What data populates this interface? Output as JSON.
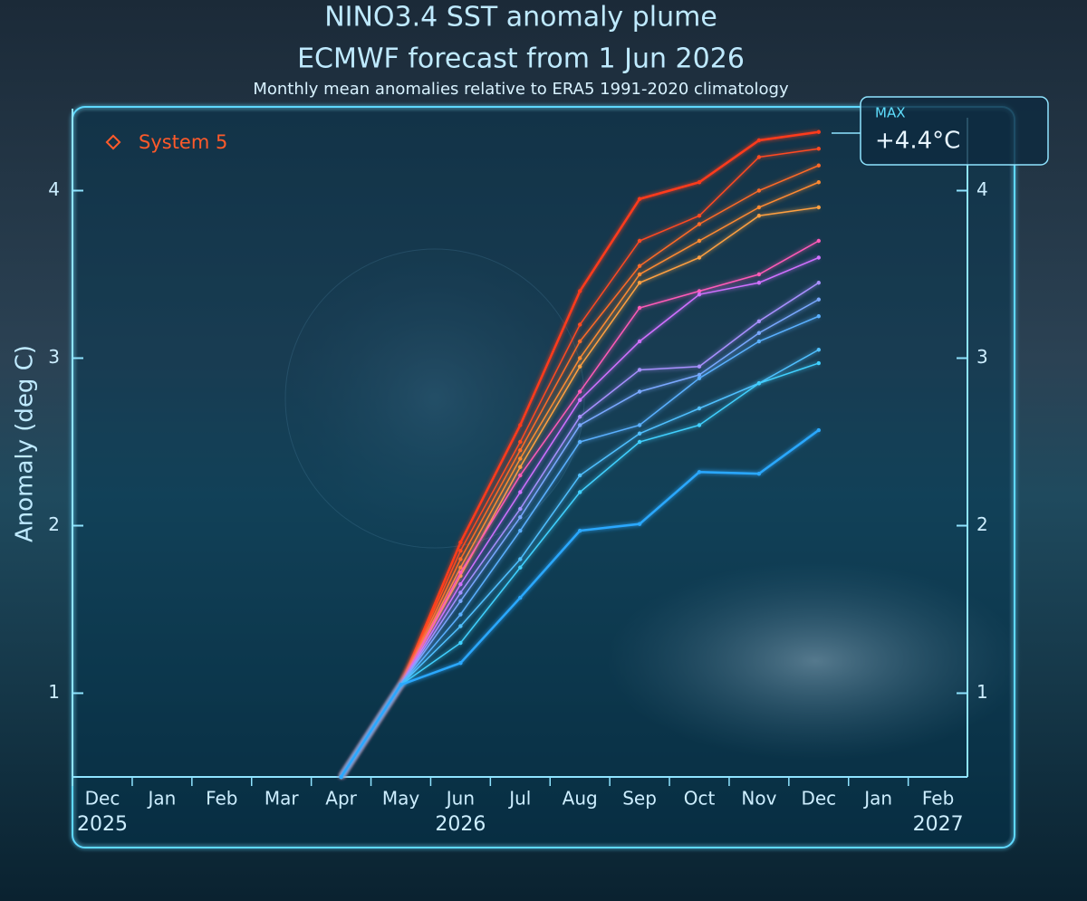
{
  "chart_data": {
    "type": "line",
    "title": "NINO3.4 SST anomaly plume",
    "subtitle": "ECMWF forecast from 1 Jun 2026",
    "caption": "Monthly mean anomalies relative to ERA5 1991-2020 climatology",
    "y_label": "Anomaly (deg C)",
    "legend_label": "System 5",
    "legend_color": "#ff5a2a",
    "annotation": {
      "title": "MAX",
      "text": "+4.4°C"
    },
    "categories": [
      "Dec",
      "Jan",
      "Feb",
      "Mar",
      "Apr",
      "May",
      "Jun",
      "Jul",
      "Aug",
      "Sep",
      "Oct",
      "Nov",
      "Dec",
      "Jan",
      "Feb"
    ],
    "category_years": [
      "2025",
      null,
      null,
      null,
      null,
      null,
      "2026",
      null,
      null,
      null,
      null,
      null,
      null,
      null,
      "2027"
    ],
    "ylim": [
      0.5,
      4.5
    ],
    "yticks": [
      1,
      2,
      3,
      4
    ],
    "series": [
      {
        "color": "#ff3a1a",
        "values": [
          null,
          null,
          null,
          null,
          0.5,
          1.05,
          1.9,
          2.6,
          3.4,
          3.95,
          4.05,
          4.3,
          4.35,
          null,
          null
        ]
      },
      {
        "color": "#ff4a20",
        "values": [
          null,
          null,
          null,
          null,
          0.5,
          1.05,
          1.85,
          2.5,
          3.2,
          3.7,
          3.85,
          4.2,
          4.25,
          null,
          null
        ]
      },
      {
        "color": "#ff6a28",
        "values": [
          null,
          null,
          null,
          null,
          0.5,
          1.05,
          1.8,
          2.45,
          3.1,
          3.55,
          3.8,
          4.0,
          4.15,
          null,
          null
        ]
      },
      {
        "color": "#ff8a30",
        "values": [
          null,
          null,
          null,
          null,
          0.5,
          1.05,
          1.75,
          2.4,
          3.0,
          3.5,
          3.7,
          3.9,
          4.05,
          null,
          null
        ]
      },
      {
        "color": "#ffa040",
        "values": [
          null,
          null,
          null,
          null,
          0.5,
          1.05,
          1.7,
          2.35,
          2.95,
          3.45,
          3.6,
          3.85,
          3.9,
          null,
          null
        ]
      },
      {
        "color": "#ff5ab8",
        "values": [
          null,
          null,
          null,
          null,
          0.5,
          1.05,
          1.72,
          2.3,
          2.8,
          3.3,
          3.4,
          3.5,
          3.7,
          null,
          null
        ]
      },
      {
        "color": "#d070ff",
        "values": [
          null,
          null,
          null,
          null,
          0.5,
          1.05,
          1.65,
          2.2,
          2.75,
          3.1,
          3.38,
          3.45,
          3.6,
          null,
          null
        ]
      },
      {
        "color": "#a890ff",
        "values": [
          null,
          null,
          null,
          null,
          0.5,
          1.05,
          1.6,
          2.1,
          2.65,
          2.93,
          2.95,
          3.22,
          3.45,
          null,
          null
        ]
      },
      {
        "color": "#7aa8ff",
        "values": [
          null,
          null,
          null,
          null,
          0.5,
          1.05,
          1.55,
          2.05,
          2.6,
          2.8,
          2.9,
          3.15,
          3.35,
          null,
          null
        ]
      },
      {
        "color": "#5ab0ff",
        "values": [
          null,
          null,
          null,
          null,
          0.5,
          1.05,
          1.47,
          1.97,
          2.5,
          2.6,
          2.88,
          3.1,
          3.25,
          null,
          null
        ]
      },
      {
        "color": "#50c0ff",
        "values": [
          null,
          null,
          null,
          null,
          0.5,
          1.05,
          1.4,
          1.8,
          2.3,
          2.55,
          2.7,
          2.85,
          3.05,
          null,
          null
        ]
      },
      {
        "color": "#40d0ff",
        "values": [
          null,
          null,
          null,
          null,
          0.5,
          1.05,
          1.3,
          1.75,
          2.2,
          2.5,
          2.6,
          2.85,
          2.97,
          null,
          null
        ]
      },
      {
        "color": "#2aa8ff",
        "values": [
          null,
          null,
          null,
          null,
          0.5,
          1.05,
          1.18,
          1.57,
          1.97,
          2.01,
          2.32,
          2.31,
          2.57,
          null,
          null
        ]
      }
    ]
  }
}
